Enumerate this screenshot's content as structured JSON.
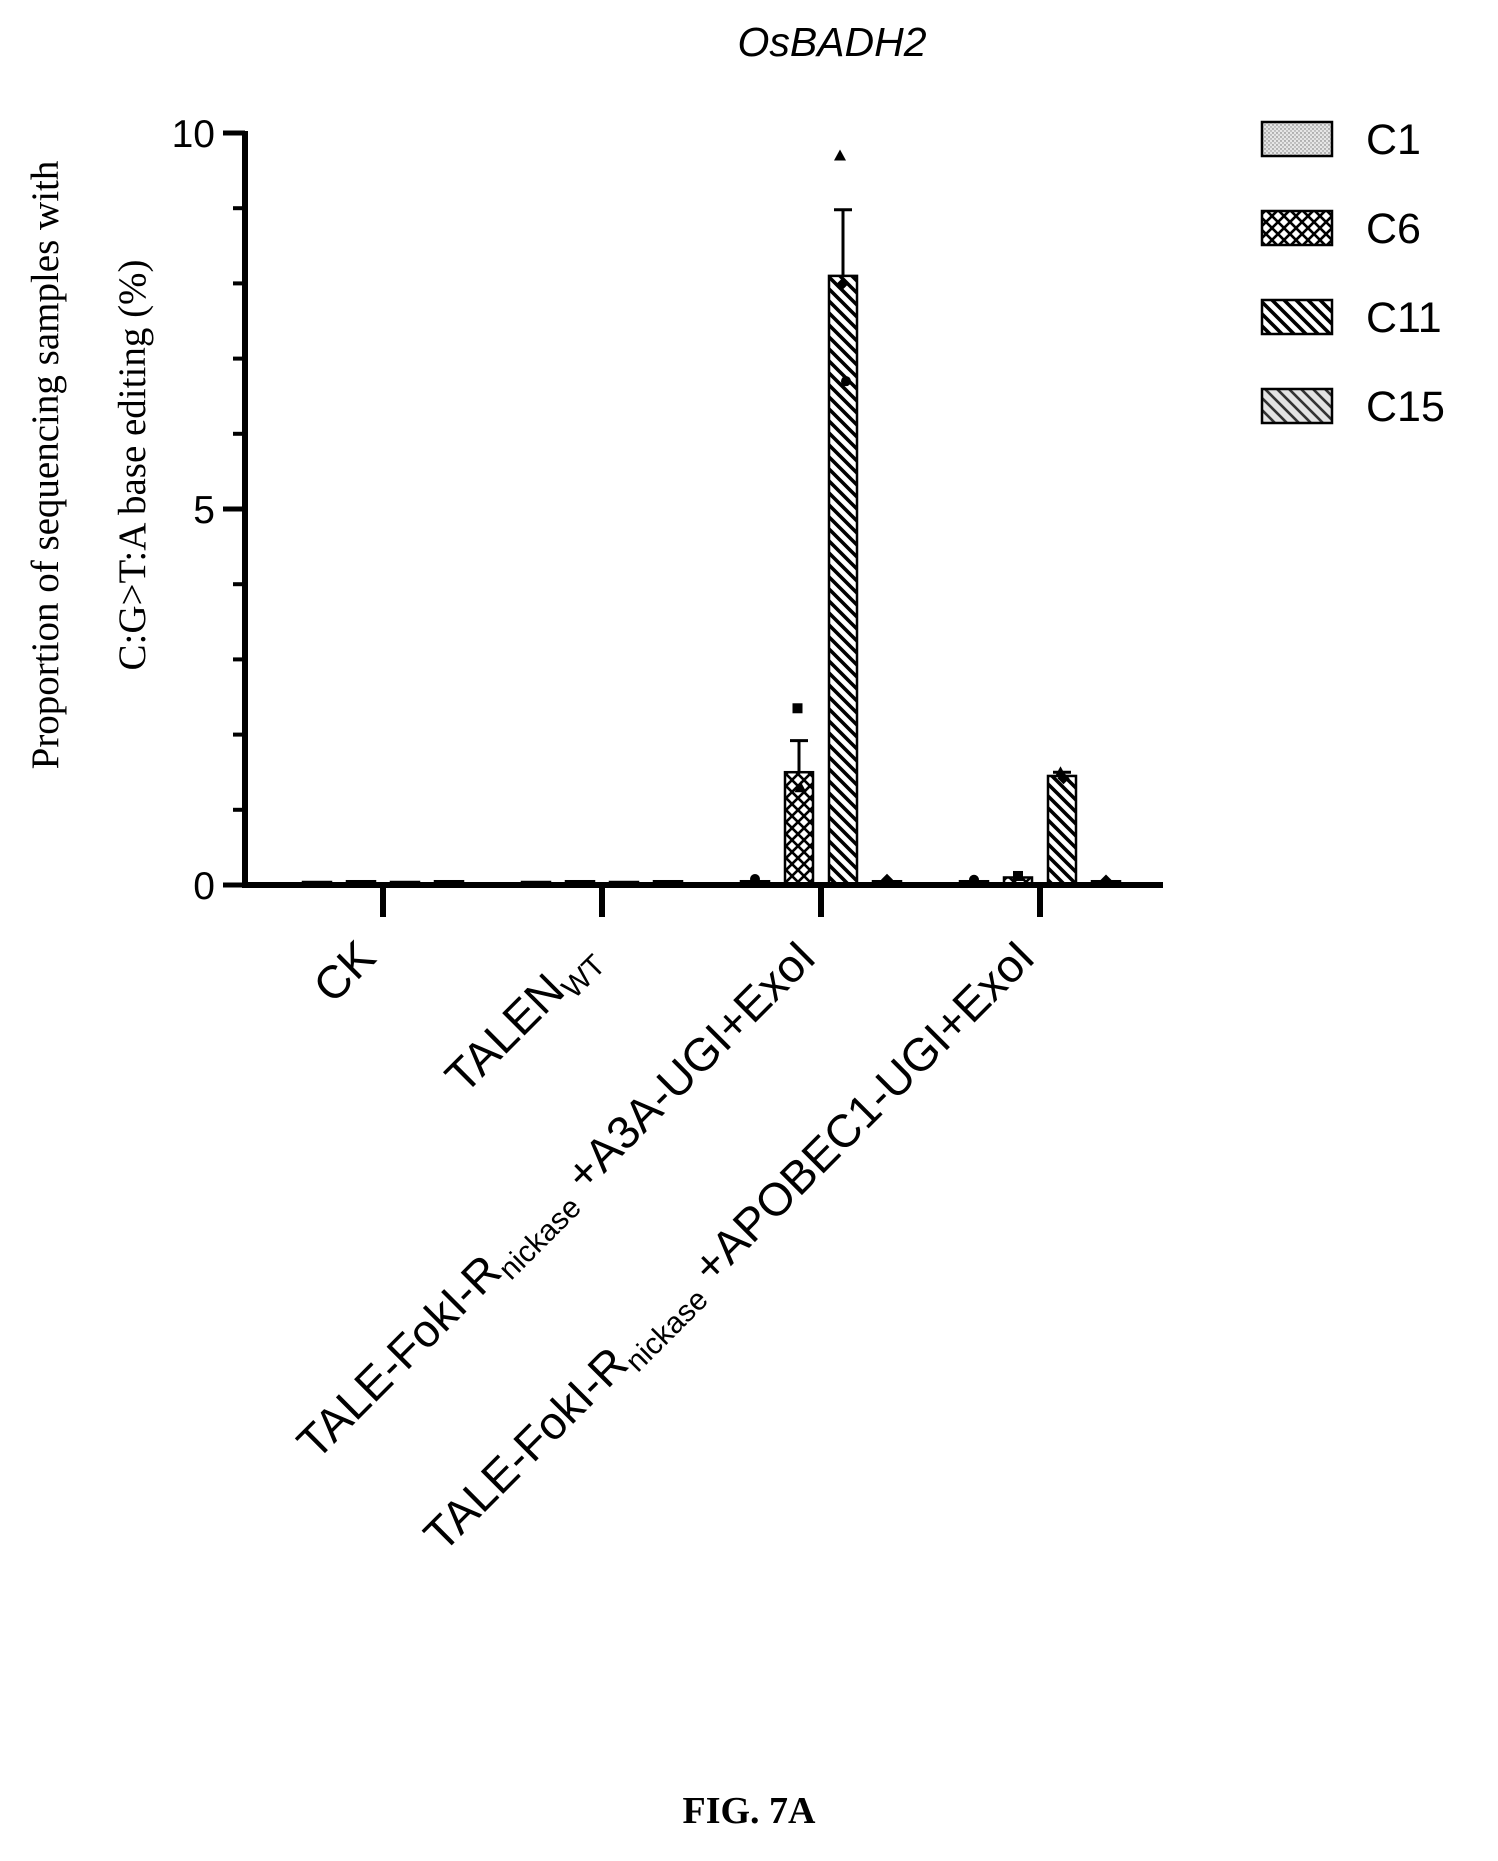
{
  "chart_data": {
    "type": "bar",
    "title": "OsBADH2",
    "ylabel_line1": "Proportion of  sequencing  samples  with",
    "ylabel_line2": "C:G>T:A base editing (%)",
    "xlabel": "",
    "ylim": [
      0,
      10
    ],
    "yticks": [
      "0",
      "5",
      "10"
    ],
    "ytick_values": [
      0,
      5,
      10
    ],
    "categories": [
      {
        "main": "CK",
        "sub": "",
        "tail": ""
      },
      {
        "main": "TALEN",
        "sub": "WT",
        "tail": ""
      },
      {
        "main": "TALE-FokI-R",
        "sub": "nickase",
        "tail": " +A3A-UGI+ExoI"
      },
      {
        "main": "TALE-FokI-R",
        "sub": "nickase",
        "tail": " +APOBEC1-UGI+ExoI"
      }
    ],
    "series": [
      {
        "name": "C1",
        "values": [
          0.0,
          0.0,
          0.05,
          0.05
        ],
        "errors": [
          0,
          0,
          0,
          0
        ],
        "pattern": "dots",
        "points": [
          [],
          [],
          [
            0.08
          ],
          [
            0.07
          ]
        ]
      },
      {
        "name": "C6",
        "values": [
          0.05,
          0.05,
          1.5,
          0.1
        ],
        "errors": [
          0,
          0,
          0.42,
          0
        ],
        "pattern": "cross",
        "points": [
          [],
          [],
          [
            2.35,
            1.3
          ],
          [
            0.12
          ]
        ]
      },
      {
        "name": "C11",
        "values": [
          0.0,
          0.0,
          8.1,
          1.45
        ],
        "errors": [
          0,
          0,
          0.88,
          0.05
        ],
        "pattern": "diag-dense",
        "points": [
          [],
          [],
          [
            9.7,
            8.0,
            6.7
          ],
          [
            1.5,
            1.42
          ]
        ]
      },
      {
        "name": "C15",
        "values": [
          0.05,
          0.05,
          0.05,
          0.05
        ],
        "errors": [
          0,
          0,
          0,
          0
        ],
        "pattern": "diag-light",
        "points": [
          [],
          [],
          [
            0.07
          ],
          [
            0.06
          ]
        ]
      }
    ],
    "legend_position": "top-right",
    "grid": false
  },
  "figure_caption": "FIG. 7A"
}
